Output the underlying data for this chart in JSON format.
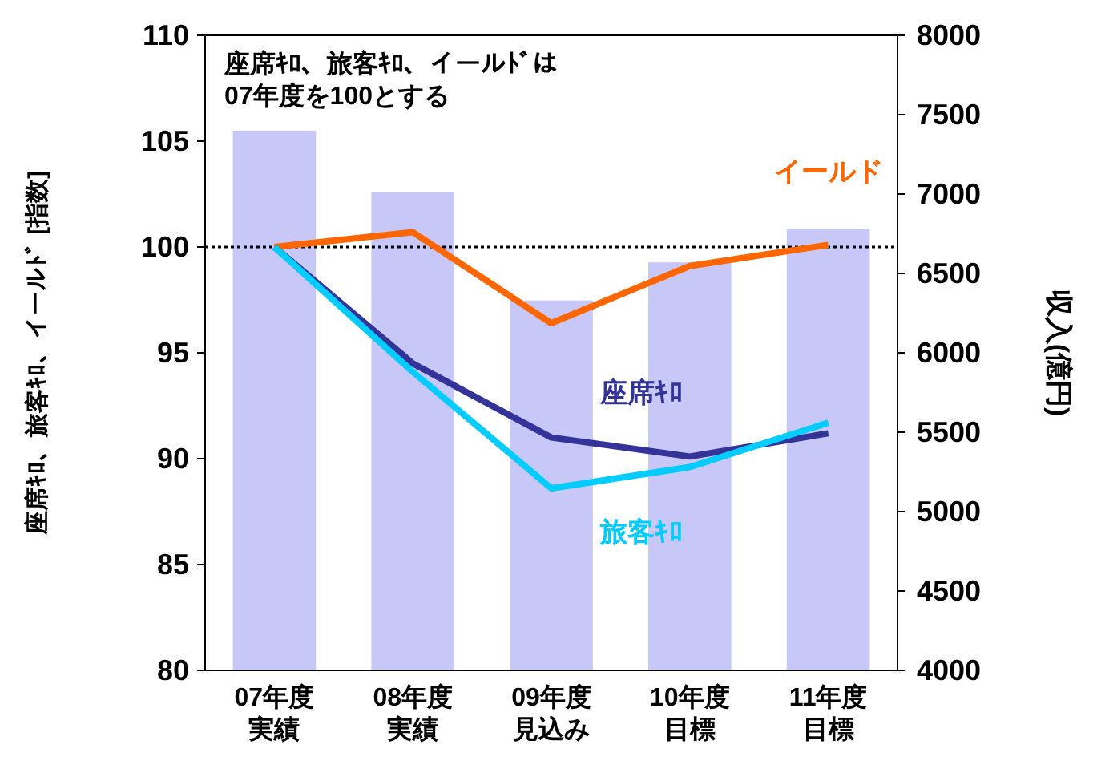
{
  "chart_data": {
    "type": "line",
    "categories": [
      "07年度実績",
      "08年度実績",
      "09年度見込み",
      "10年度目標",
      "11年度目標"
    ],
    "ylabel": "座席ｷﾛ、旅客ｷﾛ、イールﾄﾞ [指数]",
    "y2label": "収入(億円)",
    "annotations": [
      "座席ｷﾛ、旅客ｷﾛ、イールﾄﾞは\n07年度を100とする"
    ],
    "ylim": [
      80,
      110
    ],
    "yticks": [
      80,
      85,
      90,
      95,
      100,
      105,
      110
    ],
    "y2lim": [
      4000,
      8000
    ],
    "y2ticks": [
      4000,
      4500,
      5000,
      5500,
      6000,
      6500,
      7000,
      7500,
      8000
    ],
    "grid": false,
    "marker": "none",
    "line_style": "solid",
    "ref_lines": [
      {
        "axis": "y",
        "value": 100,
        "line_style": "dotted",
        "color": "#000000"
      }
    ],
    "series": [
      {
        "type": "bar",
        "axis": "y2",
        "color": "#c8c8f8",
        "values": [
          7400,
          7010,
          6330,
          6570,
          6780
        ]
      },
      {
        "name": "イールド",
        "color": "#ff6600",
        "values": [
          100,
          100.7,
          96.4,
          99.1,
          100.1
        ]
      },
      {
        "name": "座席ｷﾛ",
        "color": "#333399",
        "values": [
          100,
          94.5,
          91.0,
          90.1,
          91.2
        ]
      },
      {
        "name": "旅客ｷﾛ",
        "color": "#00ccff",
        "values": [
          100,
          94.1,
          88.6,
          89.6,
          91.7
        ]
      }
    ]
  }
}
